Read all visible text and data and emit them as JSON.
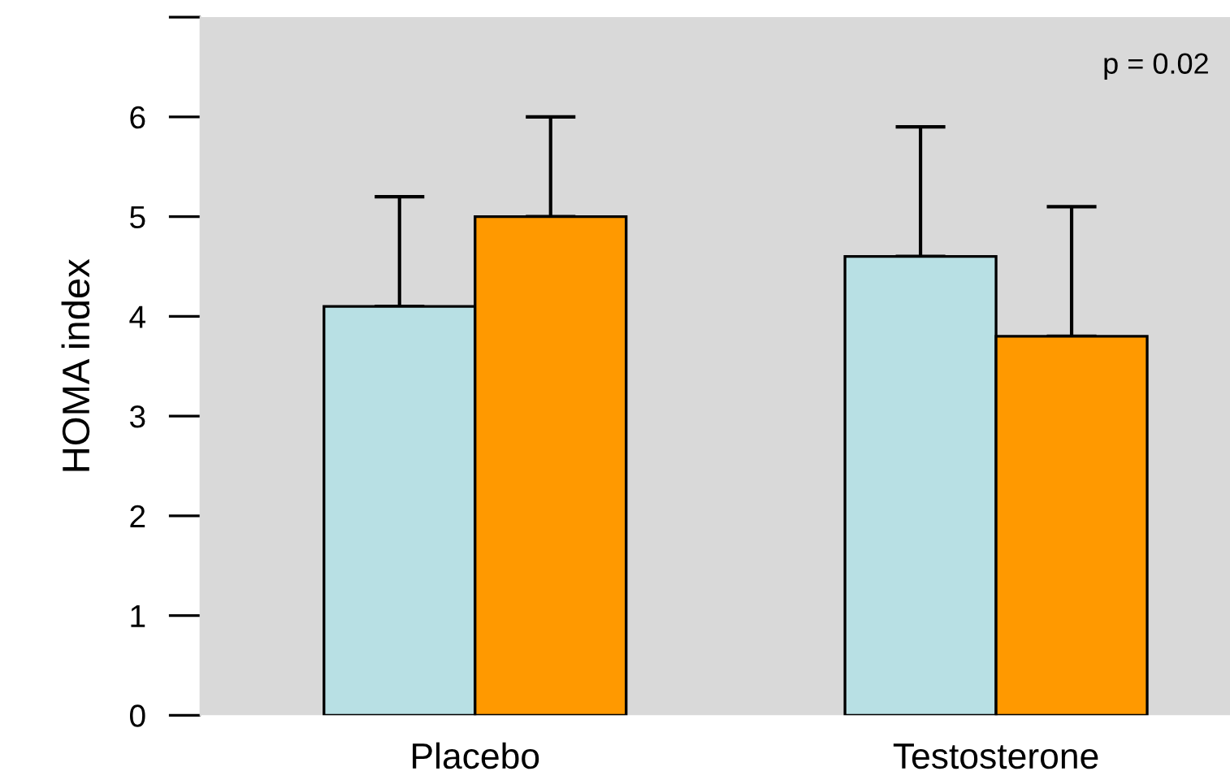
{
  "chart_data": {
    "type": "bar",
    "ylabel": "HOMA index",
    "categories": [
      "Placebo",
      "Testosterone"
    ],
    "series": [
      {
        "color": "#b8e0e4",
        "values": [
          4.1,
          4.6
        ],
        "errors": [
          [
            4.1,
            5.2
          ],
          [
            4.6,
            5.9
          ]
        ]
      },
      {
        "color": "#ff9900",
        "values": [
          5.0,
          3.8
        ],
        "errors": [
          [
            5.0,
            6.0
          ],
          [
            3.8,
            5.1
          ]
        ]
      }
    ],
    "ylim": [
      0,
      7
    ],
    "yticks": [
      0,
      1,
      2,
      3,
      4,
      5,
      6,
      {
        "value": 7,
        "label": null
      }
    ],
    "annotations": [
      "p = 0.02"
    ],
    "grid": false,
    "legend": false
  }
}
